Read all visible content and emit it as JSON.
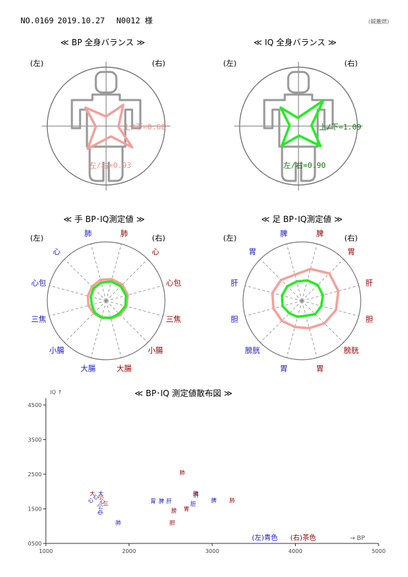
{
  "header": {
    "record_no": "NO.0169",
    "date": "2019.10.27",
    "patient": "N0012 様",
    "mark": "(鍼蓋燃)"
  },
  "labels": {
    "left": "(左)",
    "right": "(右)"
  },
  "colors": {
    "bp": "#f4a09a",
    "iq": "#22ee22",
    "blue": "#1a1acc",
    "brown": "#990000",
    "bp_text": "#f08a80",
    "iq_text": "#117711"
  },
  "balance": {
    "bp": {
      "title": "≪ BP 全身バランス ≫",
      "ud_label": "上/下=0.68",
      "lr_label": "左/右=0.93"
    },
    "iq": {
      "title": "≪ IQ 全身バランス ≫",
      "ud_label": "上/下=1.09",
      "lr_label": "左/右=0.90"
    }
  },
  "chart_data": [
    {
      "type": "radar",
      "title": "≪ 手 BP･IQ測定値 ≫",
      "axes": [
        "肺",
        "心",
        "心包",
        "三焦",
        "小腸",
        "大腸",
        "大腸",
        "小腸",
        "三焦",
        "心包",
        "心",
        "肺"
      ],
      "axis_sides": [
        "left",
        "left",
        "left",
        "left",
        "left",
        "left",
        "right",
        "right",
        "right",
        "right",
        "right",
        "right"
      ],
      "series": [
        {
          "values": [
            1850,
            1700,
            1600,
            1550,
            1500,
            1500,
            1550,
            1700,
            1800,
            1900,
            1950,
            1900
          ]
        },
        {
          "values": [
            1600,
            1500,
            1350,
            1250,
            1400,
            1450,
            1500,
            1550,
            1700,
            1750,
            1750,
            1700
          ]
        }
      ]
    },
    {
      "type": "radar",
      "title": "≪ 足 BP･IQ測定値 ≫",
      "axes": [
        "脾",
        "胃",
        "肝",
        "胆",
        "膀胱",
        "胃",
        "胃",
        "膀胱",
        "胆",
        "肝",
        "胃",
        "脾"
      ],
      "axis_sides": [
        "left",
        "left",
        "left",
        "left",
        "left",
        "left",
        "right",
        "right",
        "right",
        "right",
        "right",
        "right"
      ],
      "series": [
        {
          "values": [
            2300,
            2500,
            2600,
            2500,
            2400,
            2300,
            2400,
            2700,
            3000,
            3200,
            3300,
            2800
          ]
        },
        {
          "values": [
            1700,
            1750,
            1750,
            1700,
            1500,
            1400,
            1300,
            1600,
            1700,
            1850,
            1900,
            1800
          ]
        }
      ]
    },
    {
      "type": "scatter",
      "title": "≪ BP･IQ 測定値散布図 ≫",
      "xlabel": "→ BP",
      "ylabel": "IQ ↑",
      "xlim": [
        1000,
        5000
      ],
      "ylim": [
        500,
        4500
      ],
      "xticks": [
        "1000",
        "2000",
        "3000",
        "4000",
        "5000"
      ],
      "yticks": [
        "0500",
        "1500",
        "2500",
        "3500",
        "4500"
      ],
      "legend": "(左)青色 (右)茶色",
      "legend_left": "(左)青色",
      "legend_right": "(右)茶色",
      "points": [
        {
          "label": "大",
          "x": 1560,
          "y": 1950,
          "side": "right"
        },
        {
          "label": "大",
          "x": 1660,
          "y": 1950,
          "side": "left"
        },
        {
          "label": "小",
          "x": 1660,
          "y": 1850,
          "side": "right"
        },
        {
          "label": "心",
          "x": 1600,
          "y": 1850,
          "side": "left"
        },
        {
          "label": "心",
          "x": 1540,
          "y": 1750,
          "side": "left"
        },
        {
          "label": "心",
          "x": 1680,
          "y": 1720,
          "side": "right"
        },
        {
          "label": "小",
          "x": 1650,
          "y": 1600,
          "side": "left"
        },
        {
          "label": "三",
          "x": 1720,
          "y": 1650,
          "side": "right"
        },
        {
          "label": "三",
          "x": 1660,
          "y": 1450,
          "side": "left"
        },
        {
          "label": "心",
          "x": 1650,
          "y": 1400,
          "side": "left"
        },
        {
          "label": "肺",
          "x": 1870,
          "y": 1100,
          "side": "left"
        },
        {
          "label": "胃",
          "x": 2290,
          "y": 1730,
          "side": "left"
        },
        {
          "label": "脾",
          "x": 2390,
          "y": 1730,
          "side": "left"
        },
        {
          "label": "肝",
          "x": 2480,
          "y": 1730,
          "side": "left"
        },
        {
          "label": "膀",
          "x": 2540,
          "y": 1450,
          "side": "right"
        },
        {
          "label": "胆",
          "x": 2520,
          "y": 1100,
          "side": "right"
        },
        {
          "label": "肺",
          "x": 2640,
          "y": 2550,
          "side": "right"
        },
        {
          "label": "胃",
          "x": 2690,
          "y": 1500,
          "side": "right"
        },
        {
          "label": "胆",
          "x": 2770,
          "y": 1650,
          "side": "left"
        },
        {
          "label": "脾",
          "x": 2800,
          "y": 1950,
          "side": "right"
        },
        {
          "label": "肝",
          "x": 2810,
          "y": 1900,
          "side": "left"
        },
        {
          "label": "脾",
          "x": 3020,
          "y": 1750,
          "side": "left"
        },
        {
          "label": "肺",
          "x": 3240,
          "y": 1750,
          "side": "right"
        }
      ]
    }
  ]
}
